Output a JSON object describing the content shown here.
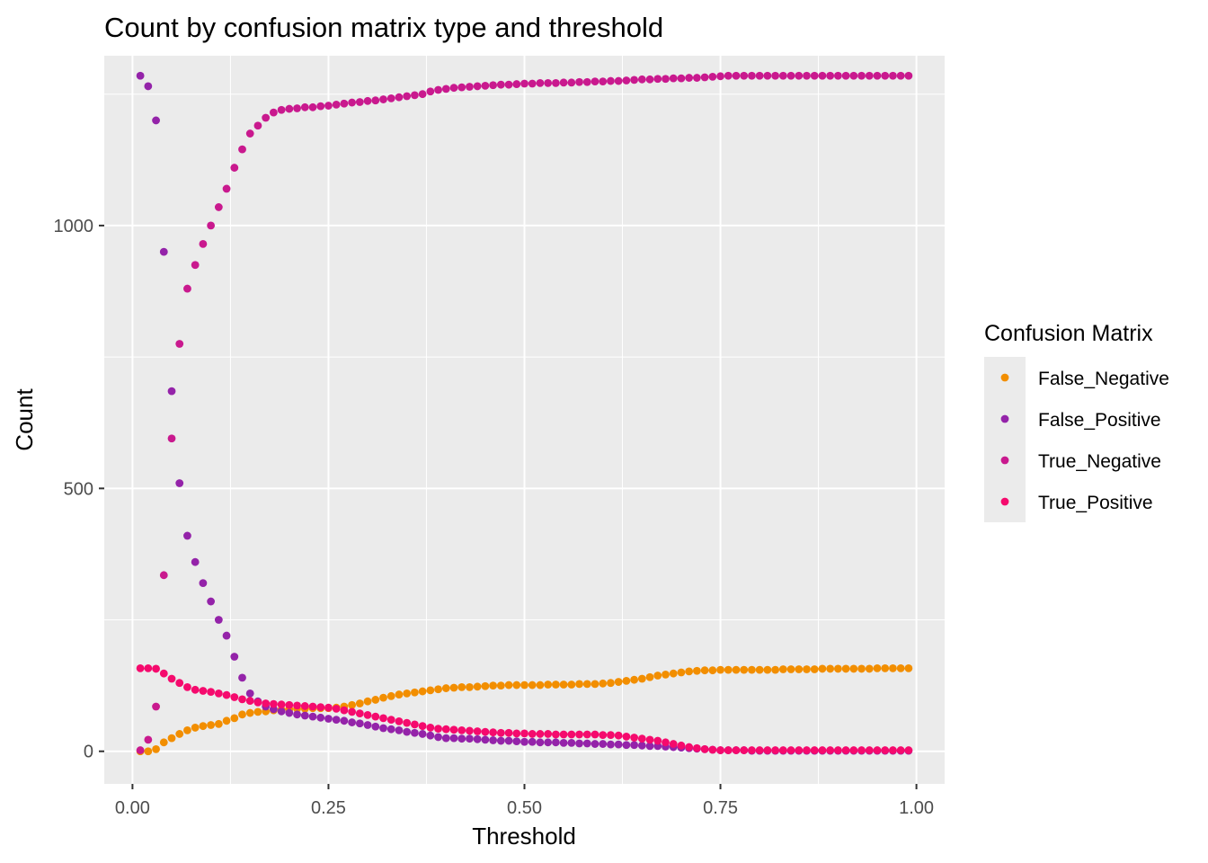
{
  "chart_data": {
    "type": "scatter",
    "title": "Count by confusion matrix type and threshold",
    "xlabel": "Threshold",
    "ylabel": "Count",
    "xlim": [
      -0.036,
      1.036
    ],
    "ylim": [
      -62,
      1323
    ],
    "x_ticks": [
      0.0,
      0.25,
      0.5,
      0.75,
      1.0
    ],
    "x_tick_labels": [
      "0.00",
      "0.25",
      "0.50",
      "0.75",
      "1.00"
    ],
    "y_ticks": [
      0,
      500,
      1000
    ],
    "y_tick_labels": [
      "0",
      "500",
      "1000"
    ],
    "grid": true,
    "background": "#ebebeb",
    "legend": {
      "title": "Confusion Matrix",
      "position": "right"
    },
    "x": [
      0.01,
      0.02,
      0.03,
      0.04,
      0.05,
      0.06,
      0.07,
      0.08,
      0.09,
      0.1,
      0.11,
      0.12,
      0.13,
      0.14,
      0.15,
      0.16,
      0.17,
      0.18,
      0.19,
      0.2,
      0.21,
      0.22,
      0.23,
      0.24,
      0.25,
      0.26,
      0.27,
      0.28,
      0.29,
      0.3,
      0.31,
      0.32,
      0.33,
      0.34,
      0.35,
      0.36,
      0.37,
      0.38,
      0.39,
      0.4,
      0.41,
      0.42,
      0.43,
      0.44,
      0.45,
      0.46,
      0.47,
      0.48,
      0.49,
      0.5,
      0.51,
      0.52,
      0.53,
      0.54,
      0.55,
      0.56,
      0.57,
      0.58,
      0.59,
      0.6,
      0.61,
      0.62,
      0.63,
      0.64,
      0.65,
      0.66,
      0.67,
      0.68,
      0.69,
      0.7,
      0.71,
      0.72,
      0.73,
      0.74,
      0.75,
      0.76,
      0.77,
      0.78,
      0.79,
      0.8,
      0.81,
      0.82,
      0.83,
      0.84,
      0.85,
      0.86,
      0.87,
      0.88,
      0.89,
      0.9,
      0.91,
      0.92,
      0.93,
      0.94,
      0.95,
      0.96,
      0.97,
      0.98,
      0.99
    ],
    "series": [
      {
        "name": "False_Negative",
        "color": "#f28e00",
        "values": [
          0,
          0,
          4,
          17,
          25,
          33,
          40,
          45,
          48,
          50,
          52,
          58,
          63,
          70,
          73,
          75,
          76,
          78,
          79,
          80,
          81,
          81,
          82,
          82,
          82,
          83,
          85,
          88,
          91,
          95,
          98,
          102,
          105,
          108,
          110,
          112,
          114,
          116,
          118,
          120,
          121,
          122,
          122,
          123,
          124,
          125,
          125,
          126,
          126,
          126,
          126,
          126,
          127,
          127,
          127,
          127,
          128,
          128,
          128,
          129,
          130,
          132,
          134,
          136,
          138,
          141,
          144,
          146,
          148,
          150,
          152,
          153,
          154,
          154,
          155,
          155,
          155,
          155,
          155,
          155,
          155,
          155,
          156,
          156,
          156,
          156,
          156,
          157,
          157,
          157,
          157,
          157,
          157,
          157,
          158,
          158,
          158,
          158,
          158
        ]
      },
      {
        "name": "False_Positive",
        "color": "#9423a9",
        "values": [
          1285,
          1265,
          1200,
          950,
          685,
          510,
          410,
          360,
          320,
          285,
          250,
          220,
          180,
          140,
          110,
          95,
          85,
          80,
          76,
          73,
          70,
          68,
          66,
          64,
          62,
          60,
          58,
          55,
          53,
          50,
          47,
          44,
          42,
          40,
          37,
          35,
          33,
          30,
          27,
          25,
          25,
          24,
          24,
          23,
          22,
          21,
          20,
          20,
          19,
          18,
          18,
          17,
          17,
          17,
          16,
          16,
          15,
          15,
          14,
          14,
          13,
          13,
          12,
          12,
          11,
          10,
          10,
          9,
          8,
          7,
          6,
          5,
          4,
          3,
          2,
          2,
          2,
          2,
          1,
          1,
          1,
          1,
          1,
          1,
          1,
          1,
          1,
          1,
          1,
          1,
          1,
          1,
          1,
          1,
          1,
          1,
          1,
          1,
          1
        ]
      },
      {
        "name": "True_Negative",
        "color": "#c9198e",
        "values": [
          2,
          22,
          85,
          335,
          595,
          775,
          880,
          925,
          965,
          1000,
          1035,
          1070,
          1110,
          1145,
          1175,
          1190,
          1205,
          1215,
          1220,
          1222,
          1223,
          1225,
          1225,
          1227,
          1228,
          1230,
          1232,
          1234,
          1235,
          1237,
          1238,
          1240,
          1242,
          1244,
          1246,
          1248,
          1250,
          1255,
          1258,
          1260,
          1262,
          1263,
          1264,
          1265,
          1266,
          1267,
          1268,
          1268,
          1269,
          1270,
          1270,
          1271,
          1271,
          1271,
          1272,
          1272,
          1273,
          1273,
          1274,
          1274,
          1275,
          1275,
          1276,
          1277,
          1278,
          1278,
          1279,
          1279,
          1280,
          1280,
          1281,
          1281,
          1282,
          1283,
          1284,
          1285,
          1285,
          1285,
          1285,
          1285,
          1285,
          1285,
          1285,
          1285,
          1285,
          1285,
          1285,
          1285,
          1285,
          1285,
          1285,
          1285,
          1285,
          1285,
          1285,
          1285,
          1285,
          1285,
          1285
        ]
      },
      {
        "name": "True_Positive",
        "color": "#f50a6d",
        "values": [
          158,
          158,
          157,
          148,
          138,
          130,
          122,
          117,
          115,
          113,
          110,
          107,
          103,
          99,
          96,
          93,
          91,
          90,
          89,
          88,
          87,
          86,
          85,
          84,
          83,
          81,
          78,
          75,
          72,
          69,
          66,
          63,
          60,
          57,
          54,
          51,
          48,
          45,
          43,
          42,
          41,
          40,
          39,
          38,
          37,
          36,
          35,
          35,
          34,
          34,
          33,
          33,
          33,
          32,
          32,
          32,
          32,
          32,
          32,
          31,
          31,
          30,
          28,
          26,
          24,
          22,
          20,
          17,
          14,
          11,
          8,
          6,
          4,
          3,
          2,
          2,
          2,
          2,
          2,
          2,
          2,
          2,
          2,
          2,
          2,
          2,
          2,
          2,
          2,
          2,
          2,
          2,
          2,
          2,
          2,
          2,
          2,
          2,
          2
        ]
      }
    ]
  }
}
